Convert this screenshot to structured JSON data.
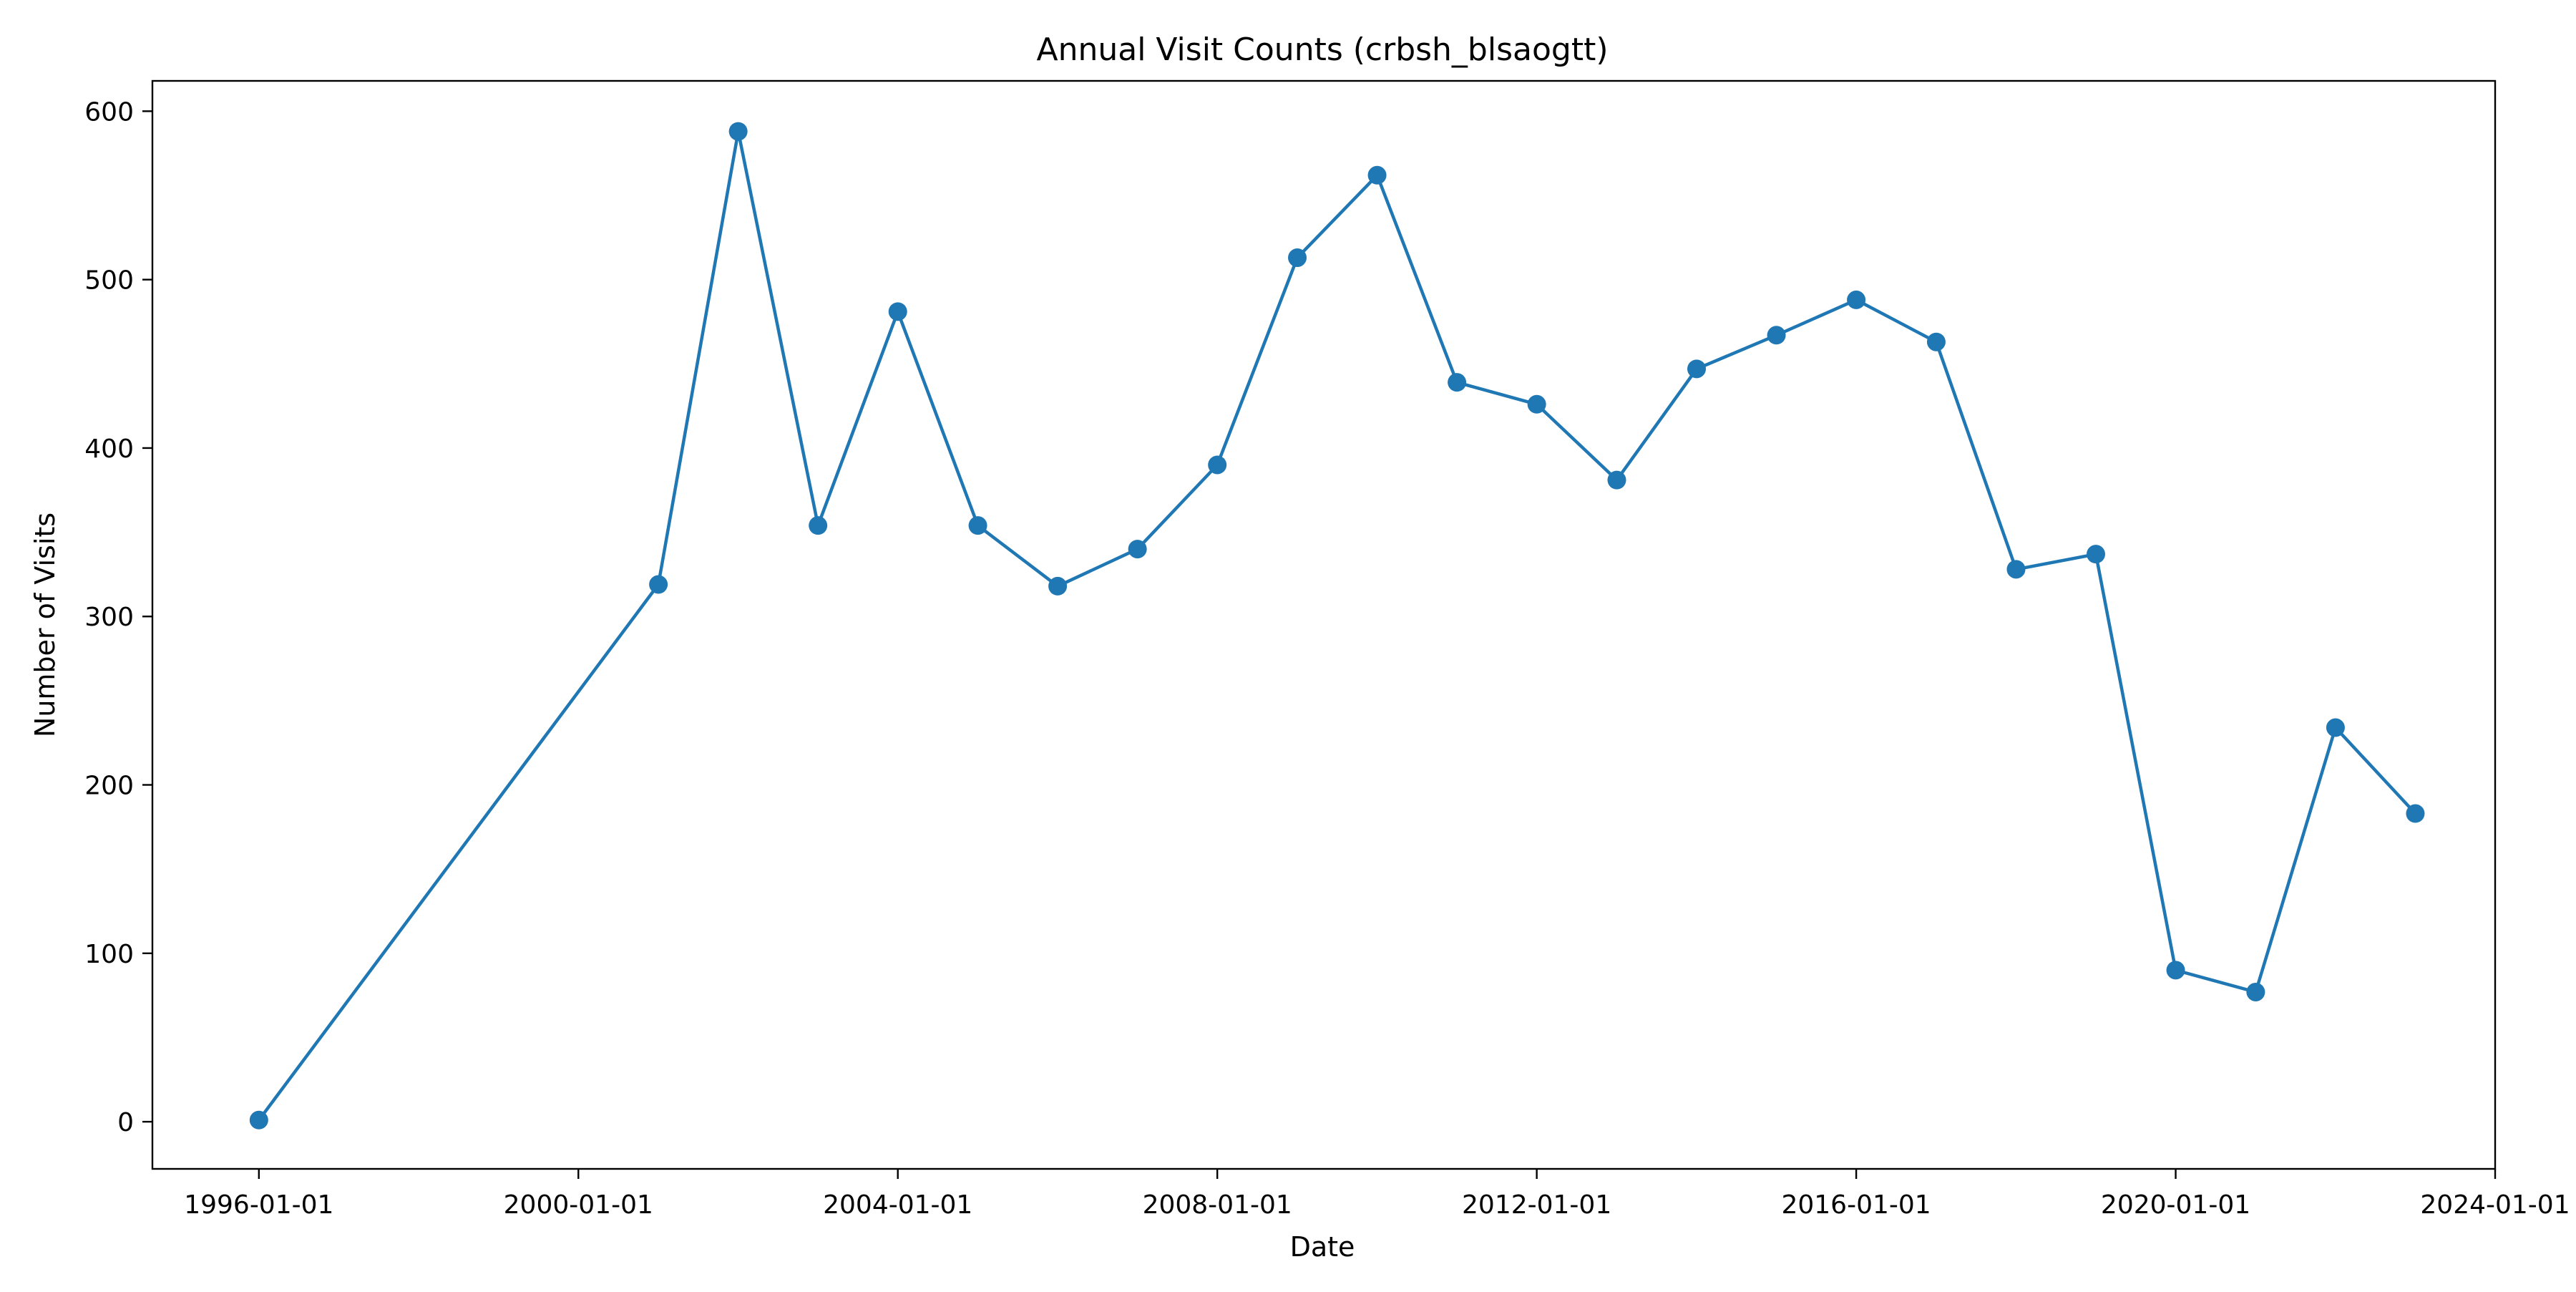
{
  "chart_data": {
    "type": "line",
    "title": "Annual Visit Counts (crbsh_blsaogtt)",
    "xlabel": "Date",
    "ylabel": "Number of Visits",
    "x_tick_labels": [
      "1996-01-01",
      "2000-01-01",
      "2004-01-01",
      "2008-01-01",
      "2012-01-01",
      "2016-01-01",
      "2020-01-01",
      "2024-01-01"
    ],
    "y_tick_labels": [
      "0",
      "100",
      "200",
      "300",
      "400",
      "500",
      "600"
    ],
    "y_ticks": [
      0,
      100,
      200,
      300,
      400,
      500,
      600
    ],
    "xlim": [
      "1994-09-01",
      "2024-01-01"
    ],
    "ylim": [
      -28,
      618
    ],
    "grid": false,
    "legend": "none",
    "series": [
      {
        "color": "#1f77b4",
        "marker": "circle",
        "x": [
          "1996-01-01",
          "2001-01-01",
          "2002-01-01",
          "2003-01-01",
          "2004-01-01",
          "2005-01-01",
          "2006-01-01",
          "2007-01-01",
          "2008-01-01",
          "2009-01-01",
          "2010-01-01",
          "2011-01-01",
          "2012-01-01",
          "2013-01-01",
          "2014-01-01",
          "2015-01-01",
          "2016-01-01",
          "2017-01-01",
          "2018-01-01",
          "2019-01-01",
          "2020-01-01",
          "2021-01-01",
          "2022-01-01",
          "2023-01-01"
        ],
        "values": [
          1,
          319,
          588,
          354,
          481,
          354,
          318,
          340,
          390,
          513,
          562,
          439,
          426,
          381,
          447,
          467,
          488,
          463,
          328,
          337,
          90,
          77,
          234,
          183
        ]
      }
    ]
  }
}
